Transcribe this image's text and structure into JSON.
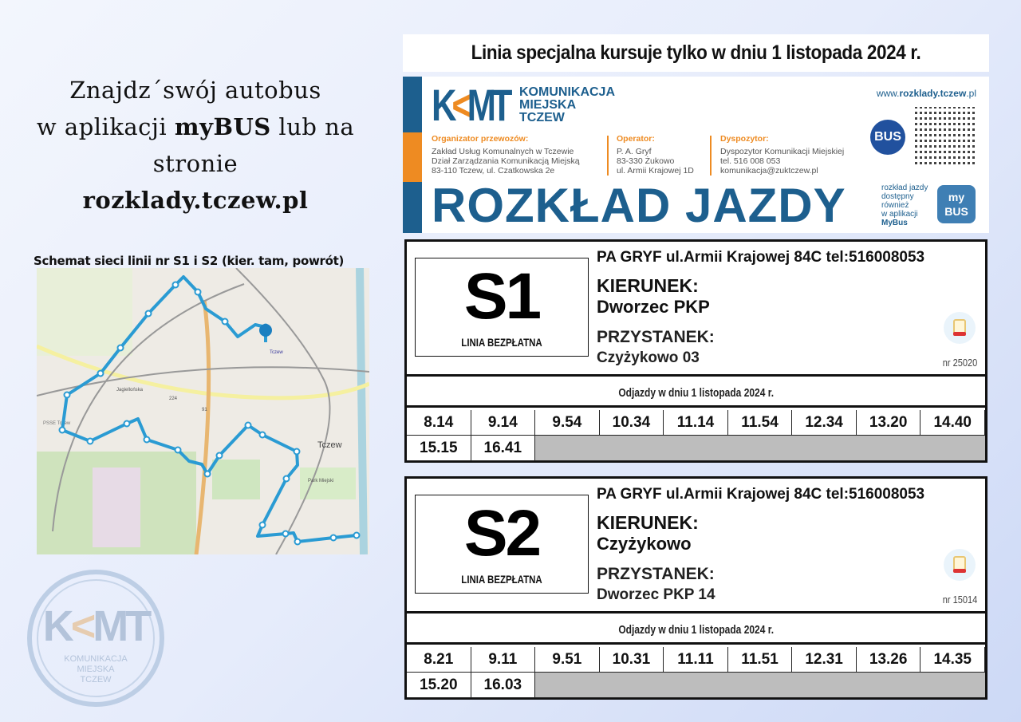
{
  "intro": {
    "line1": "Znajdz´swój autobus",
    "line2a": "w aplikacji ",
    "line2b": "myBUS",
    "line2c": " lub na",
    "line3": "stronie",
    "line4": "rozklady.tczew.pl"
  },
  "schema": {
    "title": "Schemat sieci linii nr S1 i S2 (kier. tam, powrót)",
    "labels": {
      "city": "Tczew",
      "station": "Tczew",
      "park": "Park Miejski",
      "road1": "Jagiellońska",
      "road_num1": "224",
      "road_num2": "91",
      "pss": "PSSE Tczew"
    },
    "route_color": "#2a9bd3"
  },
  "watermark": {
    "brand": "KMT",
    "line1": "KOMUNIKACJA",
    "line2": "MIEJSKA",
    "line3": "TCZEW"
  },
  "notice": "Linia specjalna kursuje tylko w dniu 1 listopada 2024 r.",
  "banner": {
    "logo": "KMT",
    "logo_name": [
      "KOMUNIKACJA",
      "MIEJSKA",
      "TCZEW"
    ],
    "organizer": {
      "title": "Organizator przewozów:",
      "lines": [
        "Zakład Usług Komunalnych w Tczewie",
        "Dział Zarządzania Komunikacją Miejską",
        "83-110 Tczew, ul. Czatkowska 2e"
      ]
    },
    "operator": {
      "title": "Operator:",
      "lines": [
        "P. A. Gryf",
        "83-330 Żukowo",
        "ul. Armii Krajowej 1D"
      ]
    },
    "dispatcher": {
      "title": "Dyspozytor:",
      "lines": [
        "Dyspozytor Komunikacji Miejskiej",
        "tel. 516 008 053",
        "komunikacja@zuktczew.pl"
      ]
    },
    "title": "ROZKŁAD JAZDY",
    "url_prefix": "www.",
    "url_main": "rozklady.tczew",
    "url_suffix": ".pl",
    "bus_badge": "BUS",
    "app_note": [
      "rozkład jazdy",
      "dostępny",
      "również",
      "w aplikacji",
      "MyBus"
    ],
    "app_icon": [
      "my",
      "BUS"
    ],
    "colors": {
      "blue": "#1d5f8e",
      "orange": "#ee8b22"
    }
  },
  "cards": [
    {
      "line": "S1",
      "free": "LINIA BEZPŁATNA",
      "operator": "PA GRYF ul.Armii Krajowej 84C tel:516008053",
      "direction_label": "KIERUNEK:",
      "direction": "Dworzec PKP",
      "stop_label": "PRZYSTANEK:",
      "stop": "Czyżykowo 03",
      "stop_nr": "nr 25020",
      "departures_title": "Odjazdy w dniu 1 listopada 2024 r.",
      "times": [
        "8.14",
        "9.14",
        "9.54",
        "10.34",
        "11.14",
        "11.54",
        "12.34",
        "13.20",
        "14.40",
        "15.15",
        "16.41"
      ]
    },
    {
      "line": "S2",
      "free": "LINIA BEZPŁATNA",
      "operator": "PA GRYF ul.Armii Krajowej 84C tel:516008053",
      "direction_label": "KIERUNEK:",
      "direction": "Czyżykowo",
      "stop_label": "PRZYSTANEK:",
      "stop": "Dworzec PKP 14",
      "stop_nr": "nr 15014",
      "departures_title": "Odjazdy w dniu 1 listopada 2024 r.",
      "times": [
        "8.21",
        "9.11",
        "9.51",
        "10.31",
        "11.11",
        "11.51",
        "12.31",
        "13.26",
        "14.35",
        "15.20",
        "16.03"
      ]
    }
  ]
}
